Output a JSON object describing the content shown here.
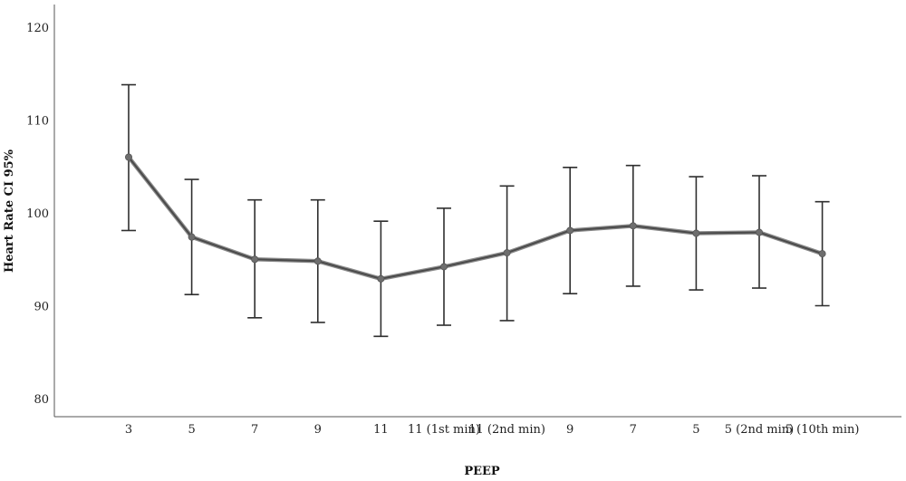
{
  "chart_data": {
    "type": "line",
    "title": "",
    "xlabel": "PEEP",
    "ylabel": "Heart Rate CI 95%",
    "ylim": [
      78,
      122
    ],
    "yticks": [
      80,
      90,
      100,
      110,
      120
    ],
    "grid": false,
    "categories": [
      "3",
      "5",
      "7",
      "9",
      "11",
      "11 (1st min)",
      "11 (2nd min)",
      "9",
      "7",
      "5",
      "5 (2nd min)",
      "5 (10th min)"
    ],
    "series": [
      {
        "values": [
          106,
          97.4,
          95,
          94.8,
          92.9,
          94.2,
          95.7,
          98.1,
          98.6,
          97.8,
          97.9,
          95.6
        ],
        "lower": [
          98.1,
          91.2,
          88.7,
          88.2,
          86.7,
          87.9,
          88.4,
          91.3,
          92.1,
          91.7,
          91.9,
          90
        ],
        "upper": [
          113.8,
          103.6,
          101.4,
          101.4,
          99.1,
          100.5,
          102.9,
          104.9,
          105.1,
          103.9,
          104,
          101.2
        ]
      }
    ],
    "colors": {
      "line": "#4a4a4a",
      "marker": "#6e6e6e",
      "errorbar": "#2f2f2f",
      "axis": "#555555"
    }
  }
}
